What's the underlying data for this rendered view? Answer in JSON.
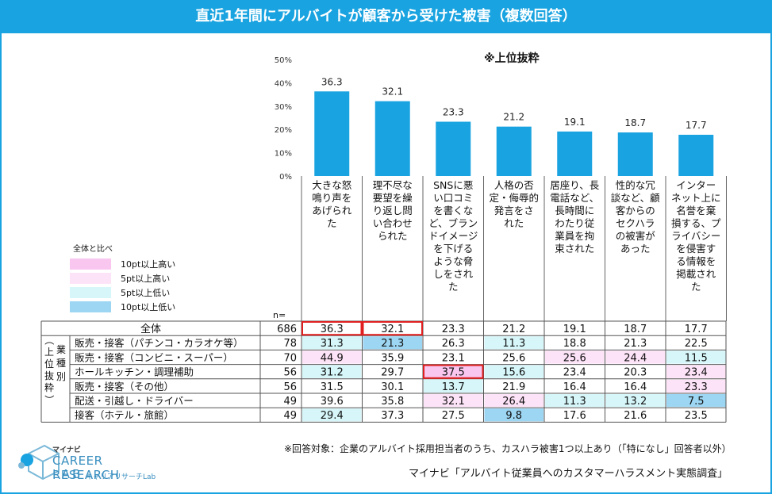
{
  "title": "直近1年間にアルバイトが顧客から受けた被害（複数回答）",
  "subtitle": "※上位抜粋",
  "legend": {
    "title": "全体と比べ",
    "items": [
      {
        "label": "10pt以上高い",
        "color": "#f9c6ef"
      },
      {
        "label": "5pt以上高い",
        "color": "#fde3f7"
      },
      {
        "label": "5pt以上低い",
        "color": "#d6f6f9"
      },
      {
        "label": "10pt以上低い",
        "color": "#9dd6f3"
      }
    ]
  },
  "n_label": "n=",
  "group_label": "（上位抜粋）",
  "group_label_2": "業種別",
  "chart_data": {
    "type": "bar",
    "ylim": [
      0,
      50
    ],
    "yticks": [
      "0%",
      "10%",
      "20%",
      "30%",
      "40%",
      "50%"
    ],
    "bar_color": "#19a3e0",
    "categories": [
      [
        "大きな怒",
        "鳴り声を",
        "あげられ",
        "た"
      ],
      [
        "理不尽な",
        "要望を繰",
        "り返し問",
        "い合わせ",
        "られた"
      ],
      [
        "SNSに悪",
        "い口コミ",
        "を書くな",
        "ど、ブラン",
        "ドイメージ",
        "を下げる",
        "ような脅",
        "しをされ",
        "た"
      ],
      [
        "人格の否",
        "定・侮辱的",
        "発言をさ",
        "れた"
      ],
      [
        "居座り、長",
        "電話など、",
        "長時間に",
        "わたり従",
        "業員を拘",
        "束された"
      ],
      [
        "性的な冗",
        "談など、顧",
        "客からの",
        "セクハラ",
        "の被害が",
        "あった"
      ],
      [
        "インター",
        "ネット上に",
        "名誉を棄",
        "損する、プ",
        "ライバシー",
        "を侵害す",
        "る情報を",
        "掲載され",
        "た"
      ]
    ],
    "values": [
      36.3,
      32.1,
      23.3,
      21.2,
      19.1,
      18.7,
      17.7
    ],
    "value_labels": [
      "36.3",
      "32.1",
      "23.3",
      "21.2",
      "19.1",
      "18.7",
      "17.7"
    ]
  },
  "table": {
    "total": {
      "label": "全体",
      "n": "686",
      "values": [
        "36.3",
        "32.1",
        "23.3",
        "21.2",
        "19.1",
        "18.7",
        "17.7"
      ],
      "shade": [
        "",
        "",
        "",
        "",
        "",
        "",
        ""
      ]
    },
    "rows": [
      {
        "label": "販売・接客（パチンコ・カラオケ等）",
        "n": "78",
        "values": [
          "31.3",
          "21.3",
          "26.3",
          "11.3",
          "18.8",
          "21.3",
          "22.5"
        ],
        "shade": [
          "lo5",
          "lo10",
          "",
          "lo5",
          "",
          "",
          ""
        ]
      },
      {
        "label": "販売・接客（コンビニ・スーパー）",
        "n": "70",
        "values": [
          "44.9",
          "35.9",
          "23.1",
          "25.6",
          "25.6",
          "24.4",
          "11.5"
        ],
        "shade": [
          "hi5",
          "",
          "",
          "",
          "hi5",
          "hi5",
          "lo5"
        ]
      },
      {
        "label": "ホールキッチン・調理補助",
        "n": "56",
        "values": [
          "31.2",
          "29.7",
          "37.5",
          "15.6",
          "23.4",
          "20.3",
          "23.4"
        ],
        "shade": [
          "lo5",
          "",
          "hi10",
          "lo5",
          "",
          "",
          "hi5"
        ]
      },
      {
        "label": "販売・接客（その他）",
        "n": "56",
        "values": [
          "31.5",
          "30.1",
          "13.7",
          "21.9",
          "16.4",
          "16.4",
          "23.3"
        ],
        "shade": [
          "",
          "",
          "lo5",
          "",
          "",
          "",
          "hi5"
        ]
      },
      {
        "label": "配送・引越し・ドライバー",
        "n": "49",
        "values": [
          "39.6",
          "35.8",
          "32.1",
          "26.4",
          "11.3",
          "13.2",
          "7.5"
        ],
        "shade": [
          "",
          "",
          "hi5",
          "hi5",
          "lo5",
          "lo5",
          "lo10"
        ]
      },
      {
        "label": "接客（ホテル・旅館）",
        "n": "49",
        "values": [
          "29.4",
          "37.3",
          "27.5",
          "9.8",
          "17.6",
          "21.6",
          "23.5"
        ],
        "shade": [
          "lo5",
          "",
          "",
          "lo10",
          "",
          "",
          ""
        ]
      }
    ]
  },
  "footnote": "※回答対象：企業のアルバイト採用担当者のうち、カスハラ被害1つ以上あり（「特になし」回答者以外）",
  "source": "マイナビ「アルバイト従業員へのカスタマーハラスメント実態調査」",
  "logo": {
    "top": "マイナビ",
    "line1": "CAREER RESEARCH",
    "line2": "LAB",
    "sub": "キャリアリサーチLab"
  },
  "colors": {
    "accent": "#19a3e0",
    "highlight_border": "#e02020",
    "hi10": "#f9c6ef",
    "hi5": "#fde3f7",
    "lo5": "#d6f6f9",
    "lo10": "#9dd6f3"
  }
}
